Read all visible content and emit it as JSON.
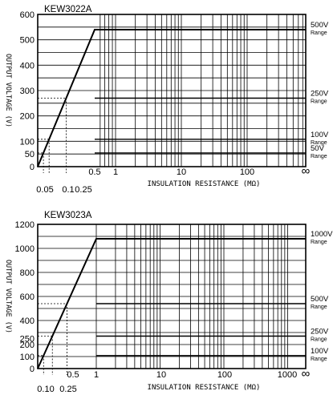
{
  "chart_data": [
    {
      "type": "line",
      "title": "KEW3022A",
      "ylabel": "OUTPUT VOLTAGE (V)",
      "xlabel": "INSULATION RESISTANCE (MΩ)",
      "xscale": "log",
      "ylim": [
        0,
        600
      ],
      "yticks": [
        "600",
        "500",
        "400",
        "300",
        "200",
        "100",
        "50",
        "0"
      ],
      "xticks_top": [
        "0.5",
        "1",
        "10",
        "100",
        "∞"
      ],
      "xticks_bottom": [
        "0.05",
        "0.1",
        "0.25"
      ],
      "grid": true,
      "series": [
        {
          "x": [
            0,
            0.5,
            1000
          ],
          "y": [
            0,
            540,
            540
          ]
        }
      ],
      "range_lines": [
        {
          "value": 540,
          "label": "500V",
          "sub": "Range"
        },
        {
          "value": 270,
          "label": "250V",
          "sub": "Range"
        },
        {
          "value": 108,
          "label": "100V",
          "sub": "Range"
        },
        {
          "value": 54,
          "label": "50V",
          "sub": "Range"
        }
      ],
      "markers": [
        {
          "x": 0.05,
          "y": 54
        },
        {
          "x": 0.1,
          "y": 108
        },
        {
          "x": 0.25,
          "y": 270
        }
      ]
    },
    {
      "type": "line",
      "title": "KEW3023A",
      "ylabel": "OUTPUT VOLTAGE (V)",
      "xlabel": "INSULATION RESISTANCE (MΩ)",
      "xscale": "log",
      "ylim": [
        0,
        1200
      ],
      "yticks": [
        "1200",
        "1000",
        "800",
        "600",
        "400",
        "250",
        "200",
        "100",
        "0"
      ],
      "xticks_top": [
        "0.5",
        "1",
        "10",
        "100",
        "1000",
        "∞"
      ],
      "xticks_bottom": [
        "0.10",
        "0.25"
      ],
      "grid": true,
      "series": [
        {
          "x": [
            0,
            1,
            3000
          ],
          "y": [
            0,
            1080,
            1080
          ]
        }
      ],
      "range_lines": [
        {
          "value": 1080,
          "label": "1000V",
          "sub": "Range"
        },
        {
          "value": 540,
          "label": "500V",
          "sub": "Range"
        },
        {
          "value": 270,
          "label": "250V",
          "sub": "Range"
        },
        {
          "value": 108,
          "label": "100V",
          "sub": "Range"
        }
      ],
      "markers": [
        {
          "x": 0.1,
          "y": 108
        },
        {
          "x": 0.25,
          "y": 270
        },
        {
          "x": 0.5,
          "y": 540
        }
      ]
    }
  ]
}
